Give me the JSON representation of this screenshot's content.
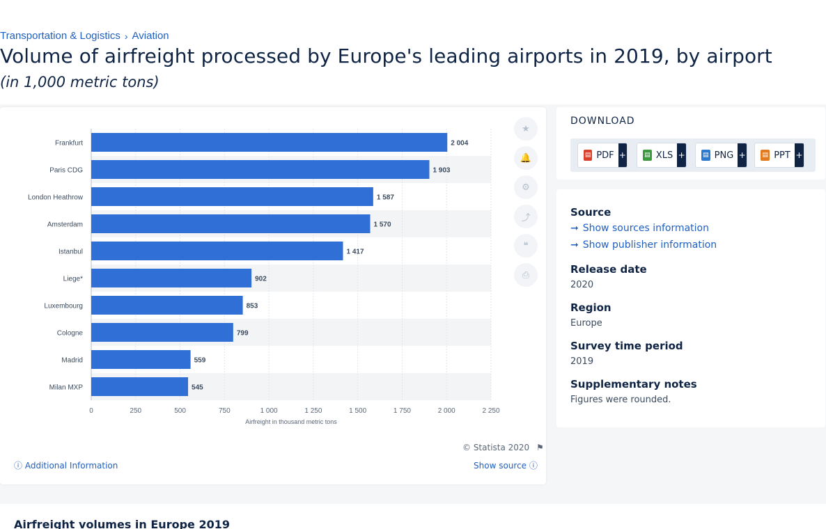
{
  "breadcrumb": {
    "item1": "Transportation & Logistics",
    "separator": "›",
    "item2": "Aviation"
  },
  "page_title": "Volume of airfreight processed by Europe's leading airports in 2019, by airport",
  "page_subtitle": "(in 1,000 metric tons)",
  "tools": {
    "favorite_icon": "star-icon",
    "alert_icon": "bell-icon",
    "settings_icon": "gear-icon",
    "share_icon": "share-icon",
    "cite_icon": "quote-icon",
    "print_icon": "print-icon"
  },
  "download": {
    "title": "DOWNLOAD",
    "buttons": [
      {
        "label": "PDF",
        "plus": "+",
        "color": "#d9412b"
      },
      {
        "label": "XLS",
        "plus": "+",
        "color": "#3a9a3c"
      },
      {
        "label": "PNG",
        "plus": "+",
        "color": "#2b7bd0"
      },
      {
        "label": "PPT",
        "plus": "+",
        "color": "#e07b22"
      }
    ]
  },
  "meta": {
    "source_heading": "Source",
    "show_sources": "Show sources information",
    "show_publisher": "Show publisher information",
    "release_heading": "Release date",
    "release_value": "2020",
    "region_heading": "Region",
    "region_value": "Europe",
    "survey_heading": "Survey time period",
    "survey_value": "2019",
    "notes_heading": "Supplementary notes",
    "notes_value": "Figures were rounded."
  },
  "footer": {
    "copyright": "© Statista 2020",
    "additional_info": "Additional Information",
    "show_source": "Show source"
  },
  "bottom_title": "Airfreight volumes in Europe 2019",
  "colors": {
    "bar": "#2f6fd6",
    "accent": "#1f5fc0",
    "text": "#0f2444"
  },
  "chart_data": {
    "type": "bar",
    "orientation": "horizontal",
    "categories": [
      "Frankfurt",
      "Paris CDG",
      "London Heathrow",
      "Amsterdam",
      "Istanbul",
      "Liege*",
      "Luxembourg",
      "Cologne",
      "Madrid",
      "Milan MXP"
    ],
    "values": [
      2004,
      1903,
      1587,
      1570,
      1417,
      902,
      853,
      799,
      559,
      545
    ],
    "value_labels": [
      "2 004",
      "1 903",
      "1 587",
      "1 570",
      "1 417",
      "902",
      "853",
      "799",
      "559",
      "545"
    ],
    "xlabel": "Airfreight in thousand metric tons",
    "xlim": [
      0,
      2250
    ],
    "xticks": [
      0,
      250,
      500,
      750,
      1000,
      1250,
      1500,
      1750,
      2000,
      2250
    ],
    "xtick_labels": [
      "0",
      "250",
      "500",
      "750",
      "1 000",
      "1 250",
      "1 500",
      "1 750",
      "2 000",
      "2 250"
    ],
    "grid": true
  }
}
